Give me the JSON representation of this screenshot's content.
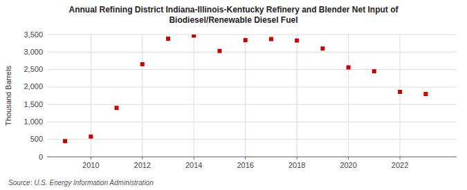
{
  "chart_data": {
    "type": "scatter",
    "title": "Annual Refining District Indiana-Illinois-Kentucky Refinery and Blender Net Input of\nBiodiesel/Renewable Diesel Fuel",
    "y_label": "Thousand Barrels",
    "source": "Source: U.S. Energy Information Administration",
    "x": [
      2009,
      2010,
      2011,
      2012,
      2013,
      2014,
      2015,
      2016,
      2017,
      2018,
      2019,
      2020,
      2021,
      2022,
      2023
    ],
    "values": [
      450,
      580,
      1400,
      2650,
      3380,
      3470,
      3030,
      3340,
      3370,
      3330,
      3100,
      2560,
      2450,
      1860,
      1800
    ],
    "color": "#cc0000",
    "marker": "square",
    "grid": true,
    "xlim": [
      2008.3,
      2024.2
    ],
    "xticks": [
      2010,
      2012,
      2014,
      2016,
      2018,
      2020,
      2022
    ],
    "ylim": [
      0,
      3500
    ],
    "yticks": [
      0,
      500,
      {
        "value": 1000,
        "label": "1,000"
      },
      {
        "value": 1500,
        "label": "1,500"
      },
      {
        "value": 2000,
        "label": "2,000"
      },
      {
        "value": 2500,
        "label": "2,500"
      },
      {
        "value": 3000,
        "label": "3,000"
      },
      {
        "value": 3500,
        "label": "3,500"
      }
    ]
  }
}
